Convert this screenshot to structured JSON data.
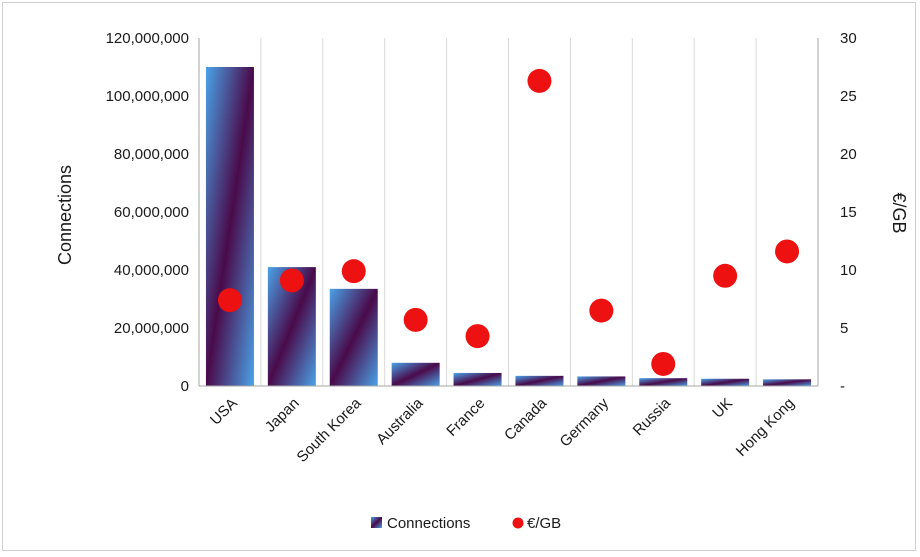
{
  "chart_data": {
    "type": "bar",
    "categories": [
      "USA",
      "Japan",
      "South Korea",
      "Australia",
      "France",
      "Canada",
      "Germany",
      "Russia",
      "UK",
      "Hong Kong"
    ],
    "series": [
      {
        "name": "Connections",
        "type": "bar",
        "axis": "left",
        "values": [
          110000000,
          41000000,
          33500000,
          8000000,
          4500000,
          3500000,
          3300000,
          2700000,
          2500000,
          2300000
        ]
      },
      {
        "name": "€/GB",
        "type": "scatter",
        "axis": "right",
        "values": [
          7.4,
          9.1,
          9.9,
          5.7,
          4.3,
          26.3,
          6.5,
          1.9,
          9.5,
          11.6
        ]
      }
    ],
    "title": "",
    "xlabel": "",
    "ylabel": "Connections",
    "y2label": "€/GB",
    "ylim": [
      0,
      120000000
    ],
    "y2lim": [
      0,
      30
    ],
    "yticks": [
      "0",
      "20,000,000",
      "40,000,000",
      "60,000,000",
      "80,000,000",
      "100,000,000",
      "120,000,000"
    ],
    "y2ticks": [
      "-",
      "5",
      "10",
      "15",
      "20",
      "25",
      "30"
    ],
    "grid": "vertical",
    "legend": "bottom",
    "colors": {
      "bar_light": "#4aa3e8",
      "bar_dark": "#4a0a4a",
      "dot": "#ee1111",
      "grid": "#d9d9d9",
      "axis": "#a6a6a6"
    }
  }
}
